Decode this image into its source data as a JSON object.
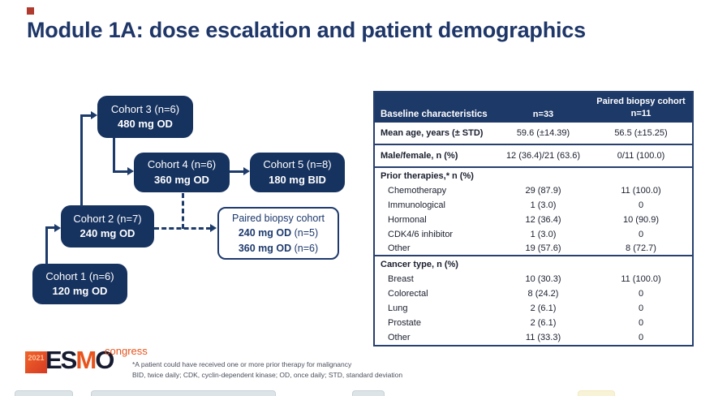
{
  "slide": {
    "title": "Module 1A: dose escalation and patient demographics"
  },
  "flowchart": {
    "cohorts": [
      {
        "line1": "Cohort 3 (n=6)",
        "line2": "480 mg OD"
      },
      {
        "line1": "Cohort 4 (n=6)",
        "line2": "360 mg OD"
      },
      {
        "line1": "Cohort 5 (n=8)",
        "line2": "180 mg BID"
      },
      {
        "line1": "Cohort 2 (n=7)",
        "line2": "240 mg OD"
      },
      {
        "line1": "Cohort 1 (n=6)",
        "line2": "120 mg OD"
      }
    ],
    "paired_biopsy": {
      "title": "Paired biopsy cohort",
      "doses": [
        {
          "dose": "240 mg OD",
          "n": " (n=5)"
        },
        {
          "dose": "360 mg OD",
          "n": " (n=6)"
        }
      ]
    }
  },
  "table": {
    "header": {
      "col1": "Baseline characteristics",
      "col2": "n=33",
      "col3_line1": "Paired biopsy cohort",
      "col3_line2": "n=11"
    },
    "rows": [
      {
        "label": "Mean age, years (± STD)",
        "bold": true,
        "v1": "59.6 (±14.39)",
        "v2": "56.5 (±15.25)",
        "rule": true
      },
      {
        "label": "Male/female, n (%)",
        "bold": true,
        "v1": "12 (36.4)/21 (63.6)",
        "v2": "0/11 (100.0)",
        "rule": true
      },
      {
        "label": "Prior therapies,* n (%)",
        "section": true
      },
      {
        "label": "Chemotherapy",
        "indent": true,
        "v1": "29 (87.9)",
        "v2": "11 (100.0)"
      },
      {
        "label": "Immunological",
        "indent": true,
        "v1": "1 (3.0)",
        "v2": "0"
      },
      {
        "label": "Hormonal",
        "indent": true,
        "v1": "12 (36.4)",
        "v2": "10 (90.9)"
      },
      {
        "label": "CDK4/6 inhibitor",
        "indent": true,
        "v1": "1 (3.0)",
        "v2": "0"
      },
      {
        "label": "Other",
        "indent": true,
        "v1": "19 (57.6)",
        "v2": "8 (72.7)",
        "rule": true
      },
      {
        "label": "Cancer type, n (%)",
        "section": true
      },
      {
        "label": "Breast",
        "indent": true,
        "v1": "10 (30.3)",
        "v2": "11 (100.0)"
      },
      {
        "label": "Colorectal",
        "indent": true,
        "v1": "8 (24.2)",
        "v2": "0"
      },
      {
        "label": "Lung",
        "indent": true,
        "v1": "2 (6.1)",
        "v2": "0"
      },
      {
        "label": "Prostate",
        "indent": true,
        "v1": "2 (6.1)",
        "v2": "0"
      },
      {
        "label": "Other",
        "indent": true,
        "v1": "11 (33.3)",
        "v2": "0"
      }
    ]
  },
  "footer": {
    "logo": {
      "year": "2021",
      "es": "ES",
      "m": "M",
      "o": "O",
      "congress": "congress"
    },
    "footnote1": "*A patient could have received one or more prior therapy for malignancy",
    "footnote2": "BID, twice daily; CDK, cyclin-dependent kinase; OD, once daily; STD, standard deviation"
  },
  "colors": {
    "title_navy": "#1e3668",
    "box_navy": "#16325f",
    "table_header_navy": "#1d3968",
    "border_navy": "#27406e",
    "logo_orange": "#e8541d",
    "marker_red": "#b03a2e"
  }
}
